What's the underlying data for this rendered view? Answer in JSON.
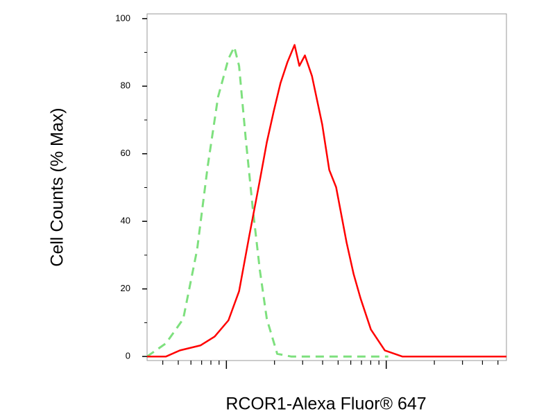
{
  "chart_data": {
    "type": "line",
    "ylabel": "Cell Counts (% Max)",
    "xlabel": "RCOR1-Alexa Fluor® 647",
    "xscale": "log",
    "xlim": [
      3.19,
      565
    ],
    "xticks": [
      10,
      100
    ],
    "ylim": [
      -1.2,
      101.4
    ],
    "yticks": [
      0,
      20,
      40,
      60,
      80,
      100
    ],
    "series": [
      {
        "color": "#7ee07e",
        "dashed": true,
        "x": [
          3.19,
          4.19,
          5.37,
          6.56,
          7.64,
          8.87,
          10.3,
          11.2,
          12.0,
          13.2,
          14.6,
          16.2,
          17.9,
          20.8,
          25.4,
          37.9,
          56.5,
          103
        ],
        "values": [
          0,
          3.9,
          11.1,
          31.6,
          56.3,
          76.8,
          88.1,
          91.6,
          86.0,
          64.7,
          44.1,
          25.5,
          11.1,
          0.8,
          0,
          0,
          0,
          0
        ]
      },
      {
        "color": "#ff0000",
        "dashed": false,
        "x": [
          3.19,
          4.19,
          5.12,
          6.9,
          8.44,
          10.3,
          12.0,
          13.9,
          16.2,
          17.9,
          19.8,
          21.8,
          24.1,
          26.7,
          28.6,
          31.0,
          34.3,
          39.8,
          44.0,
          48.6,
          56.5,
          62.5,
          69.1,
          80.2,
          98,
          126,
          154,
          565
        ],
        "values": [
          0,
          0,
          1.8,
          3.3,
          5.9,
          10.7,
          19.3,
          35.7,
          52.2,
          63.4,
          72.7,
          80.9,
          87.1,
          92.2,
          86.0,
          89.1,
          83.0,
          68.6,
          55.2,
          50.1,
          33.7,
          24.4,
          17.2,
          8.0,
          1.8,
          0,
          0,
          0
        ]
      }
    ]
  }
}
